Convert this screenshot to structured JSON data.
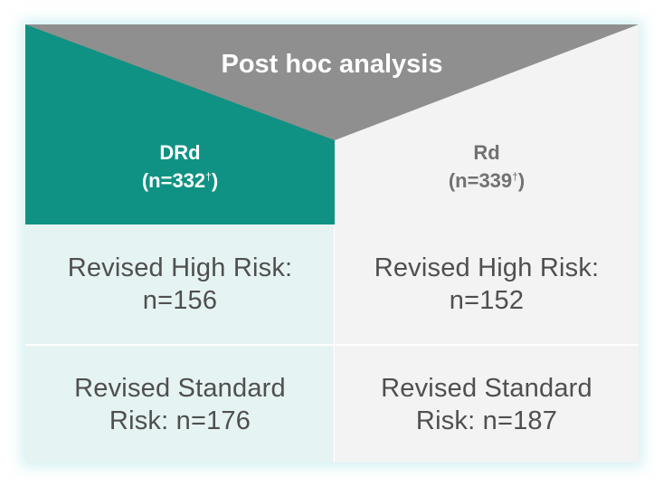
{
  "header": {
    "title": "Post hoc analysis"
  },
  "arms": [
    {
      "name": "DRd",
      "n_text": "(n=332",
      "dagger": "†",
      "close": ")"
    },
    {
      "name": "Rd",
      "n_text": "(n=339",
      "dagger": "†",
      "close": ")"
    }
  ],
  "rows": [
    {
      "cells": [
        {
          "line1": "Revised High Risk:",
          "line2": "n=156"
        },
        {
          "line1": "Revised High Risk:",
          "line2": "n=152"
        }
      ]
    },
    {
      "cells": [
        {
          "line1": "Revised Standard",
          "line2": "Risk: n=176"
        },
        {
          "line1": "Revised Standard",
          "line2": "Risk: n=187"
        }
      ]
    }
  ],
  "colors": {
    "teal": "#0f9284",
    "gray_triangle": "#8f8f8f",
    "light_gray": "#f3f3f3",
    "light_teal": "#e6f3f3"
  }
}
